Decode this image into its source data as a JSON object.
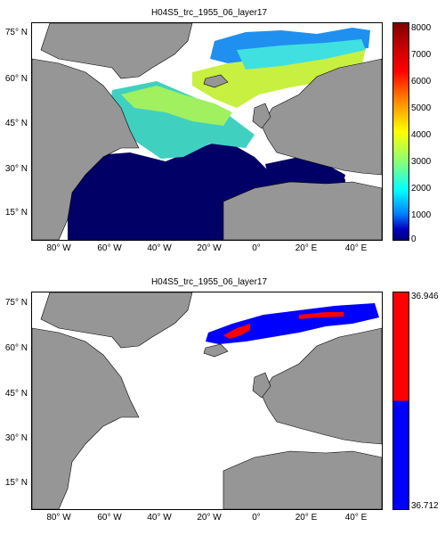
{
  "panels": [
    {
      "title": "H04S5_trc_1955_06_layer17",
      "lat_labels": [
        "75° N",
        "60° N",
        "45° N",
        "30° N",
        "15° N"
      ],
      "lat_values": [
        75,
        60,
        45,
        30,
        15
      ],
      "lon_labels": [
        "80° W",
        "60° W",
        "40° W",
        "20° W",
        "0°",
        "20° E",
        "40° E"
      ],
      "lon_values": [
        -80,
        -60,
        -40,
        -20,
        0,
        20,
        40
      ],
      "colorbar": {
        "type": "continuous",
        "ticks": [
          "8000",
          "7000",
          "6000",
          "5000",
          "4000",
          "3000",
          "2000",
          "1000",
          "0"
        ],
        "tick_values": [
          8000,
          7000,
          6000,
          5000,
          4000,
          3000,
          2000,
          1000,
          0
        ],
        "range": [
          0,
          8000
        ]
      }
    },
    {
      "title": "H04S5_trc_1955_06_layer17",
      "lat_labels": [
        "75° N",
        "60° N",
        "45° N",
        "30° N",
        "15° N"
      ],
      "lat_values": [
        75,
        60,
        45,
        30,
        15
      ],
      "lon_labels": [
        "80° W",
        "60° W",
        "40° W",
        "20° W",
        "0°",
        "20° E",
        "40° E"
      ],
      "lon_values": [
        -80,
        -60,
        -40,
        -20,
        0,
        20,
        40
      ],
      "colorbar": {
        "type": "binary",
        "ticks": [
          "36.946",
          "36.712"
        ],
        "colors": [
          "#ff0000",
          "#0000ff"
        ]
      }
    }
  ],
  "map_extent": {
    "lon": [
      -90,
      50
    ],
    "lat": [
      10,
      85
    ]
  },
  "colors": {
    "land": "#969696",
    "ocean_nodata": "#ffffff",
    "deep_ocean": "#000066"
  }
}
